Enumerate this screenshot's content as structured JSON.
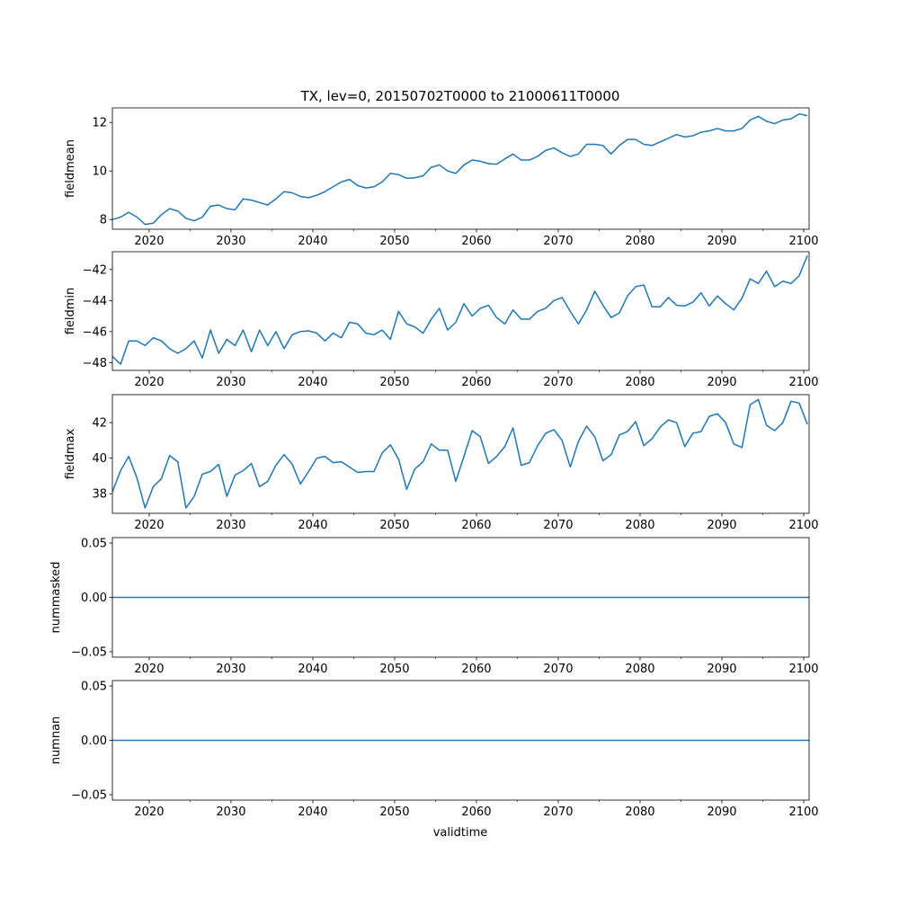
{
  "chart_data": [
    {
      "type": "line",
      "title": "TX, lev=0, 20150702T0000 to 21000611T0000",
      "ylabel": "fieldmean",
      "xlabel": "",
      "xlim": [
        2015.5,
        2100.66
      ],
      "ylim": [
        7.6,
        12.6
      ],
      "yticks": [
        8,
        10,
        12
      ],
      "ytick_labels": [
        "8",
        "10",
        "12"
      ],
      "x_range": [
        2015.5,
        2100.45
      ],
      "color": "#1f77b4",
      "values": [
        8.0,
        8.1,
        8.3,
        8.1,
        7.8,
        7.85,
        8.2,
        8.45,
        8.35,
        8.05,
        7.95,
        8.1,
        8.55,
        8.6,
        8.45,
        8.4,
        8.85,
        8.8,
        8.7,
        8.6,
        8.85,
        9.15,
        9.1,
        8.95,
        8.9,
        9.0,
        9.15,
        9.35,
        9.55,
        9.65,
        9.4,
        9.3,
        9.35,
        9.55,
        9.9,
        9.85,
        9.7,
        9.72,
        9.8,
        10.15,
        10.25,
        10.0,
        9.9,
        10.25,
        10.45,
        10.4,
        10.3,
        10.28,
        10.5,
        10.7,
        10.45,
        10.45,
        10.6,
        10.85,
        10.95,
        10.75,
        10.6,
        10.7,
        11.1,
        11.1,
        11.05,
        10.7,
        11.05,
        11.3,
        11.3,
        11.1,
        11.05,
        11.2,
        11.35,
        11.5,
        11.4,
        11.45,
        11.6,
        11.65,
        11.75,
        11.65,
        11.65,
        11.75,
        12.1,
        12.25,
        12.05,
        11.95,
        12.1,
        12.15,
        12.35,
        12.28
      ]
    },
    {
      "type": "line",
      "ylabel": "fieldmin",
      "xlabel": "",
      "xlim": [
        2015.5,
        2100.66
      ],
      "ylim": [
        -48.5,
        -40.85
      ],
      "yticks": [
        -48,
        -46,
        -44,
        -42
      ],
      "ytick_labels": [
        "−48",
        "−46",
        "−44",
        "−42"
      ],
      "x_range": [
        2015.5,
        2100.45
      ],
      "color": "#1f77b4",
      "values": [
        -47.6,
        -48.1,
        -46.6,
        -46.6,
        -46.9,
        -46.4,
        -46.6,
        -47.1,
        -47.4,
        -47.1,
        -46.6,
        -47.7,
        -45.9,
        -47.4,
        -46.5,
        -46.9,
        -45.9,
        -47.3,
        -45.9,
        -46.9,
        -46.0,
        -47.1,
        -46.2,
        -46.0,
        -45.95,
        -46.1,
        -46.6,
        -46.1,
        -46.4,
        -45.4,
        -45.5,
        -46.1,
        -46.2,
        -45.9,
        -46.5,
        -44.7,
        -45.5,
        -45.7,
        -46.1,
        -45.2,
        -44.5,
        -45.9,
        -45.4,
        -44.2,
        -45.0,
        -44.5,
        -44.3,
        -45.1,
        -45.5,
        -44.6,
        -45.2,
        -45.2,
        -44.7,
        -44.5,
        -44.0,
        -43.8,
        -44.7,
        -45.5,
        -44.6,
        -43.4,
        -44.3,
        -45.1,
        -44.8,
        -43.7,
        -43.1,
        -43.0,
        -44.4,
        -44.4,
        -43.8,
        -44.3,
        -44.35,
        -44.1,
        -43.5,
        -44.35,
        -43.7,
        -44.2,
        -44.6,
        -43.85,
        -42.6,
        -42.9,
        -42.1,
        -43.1,
        -42.75,
        -42.9,
        -42.4,
        -41.1
      ]
    },
    {
      "type": "line",
      "ylabel": "fieldmax",
      "xlabel": "",
      "xlim": [
        2015.5,
        2100.66
      ],
      "ylim": [
        36.9,
        43.57
      ],
      "yticks": [
        38,
        40,
        42
      ],
      "ytick_labels": [
        "38",
        "40",
        "42"
      ],
      "x_range": [
        2015.5,
        2100.45
      ],
      "color": "#1f77b4",
      "values": [
        38.1,
        39.3,
        40.1,
        38.9,
        37.2,
        38.4,
        38.85,
        40.15,
        39.8,
        37.2,
        37.85,
        39.1,
        39.25,
        39.65,
        37.85,
        39.05,
        39.3,
        39.7,
        38.4,
        38.7,
        39.6,
        40.2,
        39.65,
        38.55,
        39.25,
        40.0,
        40.1,
        39.75,
        39.8,
        39.5,
        39.2,
        39.25,
        39.25,
        40.3,
        40.75,
        39.95,
        38.25,
        39.4,
        39.8,
        40.8,
        40.45,
        40.45,
        38.7,
        40.1,
        41.55,
        41.2,
        39.7,
        40.1,
        40.65,
        41.7,
        39.6,
        39.75,
        40.7,
        41.4,
        41.6,
        41.0,
        39.5,
        40.95,
        41.8,
        41.2,
        39.85,
        40.2,
        41.3,
        41.5,
        42.05,
        40.7,
        41.1,
        41.75,
        42.15,
        42.0,
        40.65,
        41.4,
        41.5,
        42.35,
        42.5,
        42.0,
        40.8,
        40.6,
        43.0,
        43.3,
        41.85,
        41.55,
        42.0,
        43.2,
        43.1,
        41.9
      ]
    },
    {
      "type": "line",
      "ylabel": "nummasked",
      "xlabel": "",
      "xlim": [
        2015.5,
        2100.66
      ],
      "ylim": [
        -0.055,
        0.055
      ],
      "yticks": [
        -0.05,
        0,
        0.05
      ],
      "ytick_labels": [
        "−0.05",
        "0.00",
        "0.05"
      ],
      "x_range": [
        2015.5,
        2100.66
      ],
      "color": "#1f77b4",
      "values": [
        0,
        0
      ]
    },
    {
      "type": "line",
      "ylabel": "numnan",
      "xlabel": "validtime",
      "xlim": [
        2015.5,
        2100.66
      ],
      "ylim": [
        -0.055,
        0.055
      ],
      "yticks": [
        -0.05,
        0,
        0.05
      ],
      "ytick_labels": [
        "−0.05",
        "0.00",
        "0.05"
      ],
      "x_range": [
        2015.5,
        2100.66
      ],
      "color": "#1f77b4",
      "values": [
        0,
        0
      ]
    }
  ],
  "xticks": [
    2020,
    2030,
    2040,
    2050,
    2060,
    2070,
    2080,
    2090,
    2100
  ],
  "xtick_labels": [
    "2020",
    "2030",
    "2040",
    "2050",
    "2060",
    "2070",
    "2080",
    "2090",
    "2100"
  ],
  "xminor": [
    2025,
    2035,
    2045,
    2055,
    2065,
    2075,
    2085,
    2095
  ]
}
